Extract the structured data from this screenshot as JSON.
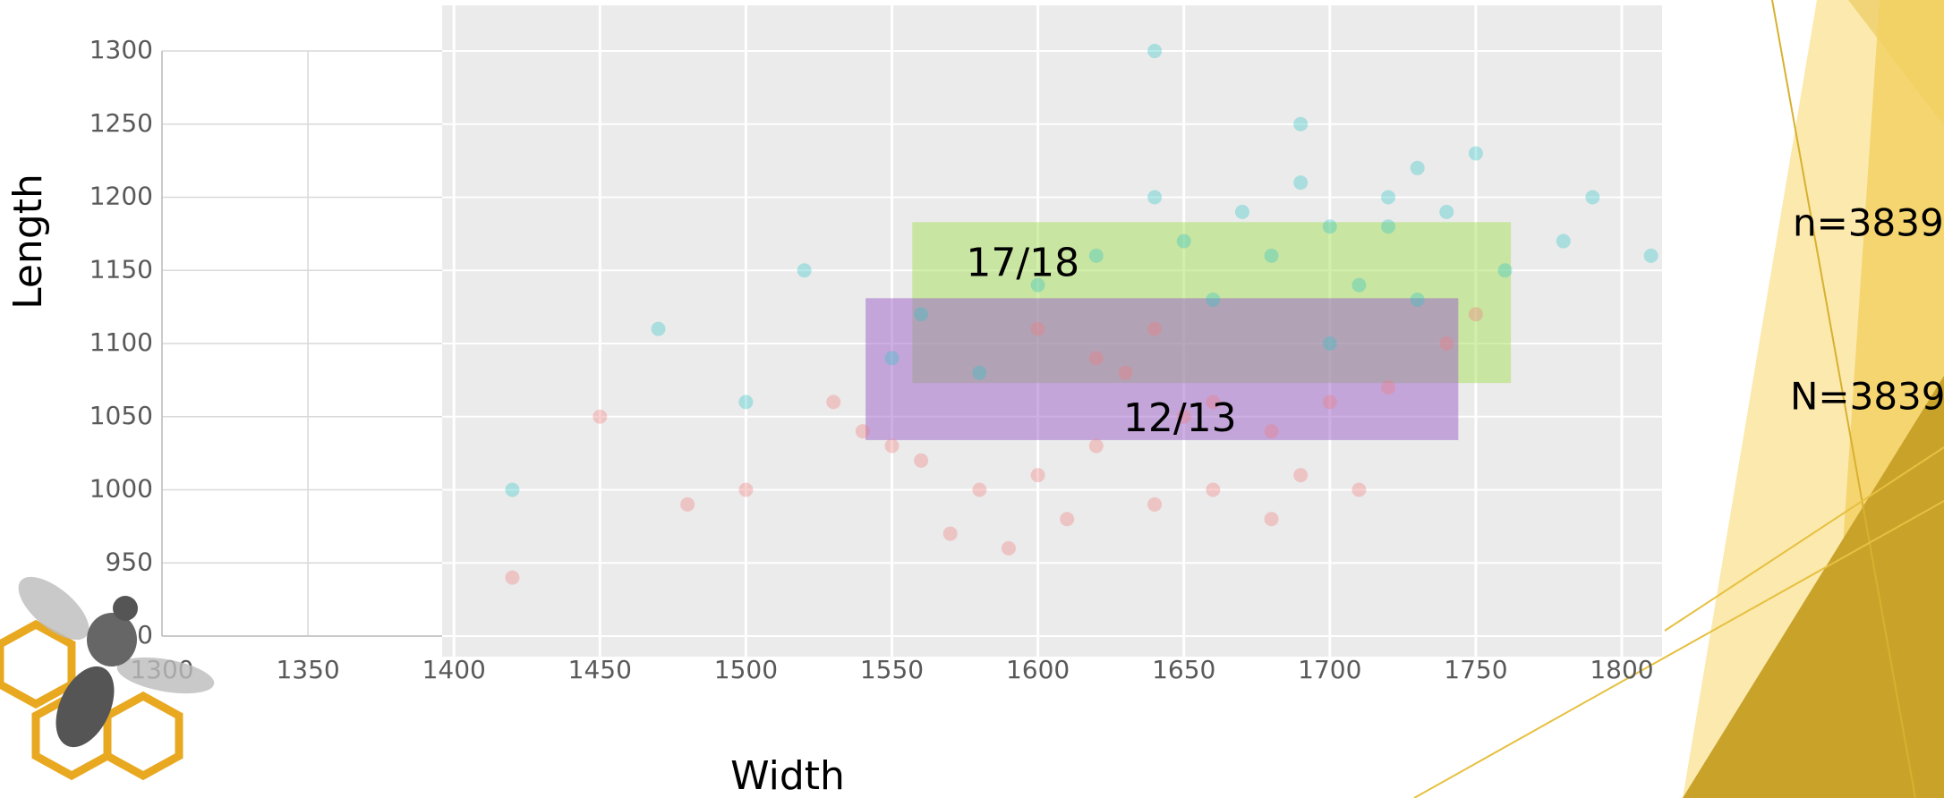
{
  "chart_data": {
    "type": "scatter",
    "x_label": "Width",
    "y_label": "Length",
    "xlim": [
      1300,
      1820
    ],
    "ylim": [
      900,
      1300
    ],
    "xticks": [
      1300,
      1350,
      1400,
      1450,
      1500,
      1550,
      1600,
      1650,
      1700,
      1750,
      1800
    ],
    "yticks": [
      900,
      950,
      1000,
      1050,
      1100,
      1150,
      1200,
      1250,
      1300
    ],
    "grid": true,
    "series": [
      {
        "color": "#2ec4c6",
        "x": [
          1700,
          1720,
          1680,
          1740,
          1760,
          1650,
          1690,
          1710,
          1730,
          1670,
          1780,
          1620,
          1600,
          1750,
          1700,
          1660,
          1640,
          1790,
          1560,
          1520,
          1470,
          1500,
          1420,
          1580,
          1690,
          1720,
          1810,
          1640,
          1550,
          1730
        ],
        "values": [
          1180,
          1200,
          1160,
          1190,
          1150,
          1170,
          1210,
          1140,
          1220,
          1190,
          1170,
          1160,
          1140,
          1230,
          1100,
          1130,
          1300,
          1200,
          1120,
          1150,
          1110,
          1060,
          1000,
          1080,
          1250,
          1180,
          1160,
          1200,
          1090,
          1130
        ]
      },
      {
        "color": "#f07a7a",
        "x": [
          1620,
          1600,
          1650,
          1580,
          1680,
          1640,
          1560,
          1700,
          1720,
          1610,
          1540,
          1660,
          1590,
          1630,
          1690,
          1500,
          1480,
          1450,
          1420,
          1530,
          1570,
          1740,
          1750,
          1620,
          1680,
          1600,
          1550,
          1710,
          1640,
          1660
        ],
        "values": [
          1030,
          1010,
          1050,
          1000,
          1040,
          990,
          1020,
          1060,
          1070,
          980,
          1040,
          1000,
          960,
          1080,
          1010,
          1000,
          990,
          1050,
          940,
          1060,
          970,
          1100,
          1120,
          1090,
          980,
          1110,
          1030,
          1000,
          1110,
          1060
        ]
      }
    ],
    "regions": [
      {
        "label": "17/18",
        "color": "#a8e05a",
        "x": [
          1557,
          1762
        ],
        "y": [
          1073,
          1183
        ]
      },
      {
        "label": "12/13",
        "color": "#9b5fc9",
        "x": [
          1541,
          1744
        ],
        "y": [
          1034,
          1131
        ]
      }
    ],
    "annotations": [
      "n=3839",
      "N=3839"
    ]
  }
}
